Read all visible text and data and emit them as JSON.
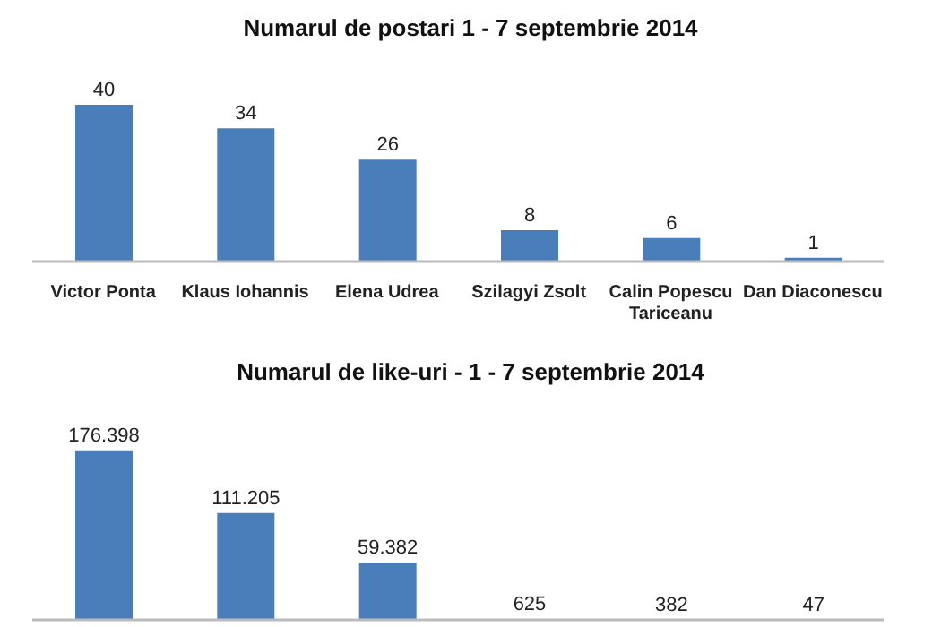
{
  "chart_data": [
    {
      "type": "bar",
      "title": "Numarul de postari 1 - 7 septembrie 2014",
      "categories": [
        "Victor Ponta",
        "Klaus Iohannis",
        "Elena Udrea",
        "Szilagyi Zsolt",
        "Calin Popescu Tariceanu",
        "Dan Diaconescu"
      ],
      "values": [
        40,
        34,
        26,
        8,
        6,
        1
      ],
      "color": "#4a7ebb",
      "data_labels": true
    },
    {
      "type": "bar",
      "title": "Numarul de like-uri - 1 - 7 septembrie 2014",
      "categories": [
        null,
        null,
        null,
        null,
        null,
        null
      ],
      "values": [
        176398,
        111205,
        59382,
        625,
        382,
        47
      ],
      "value_labels": [
        "176.398",
        "111.205",
        "59.382",
        "625",
        "382",
        "47"
      ],
      "color": "#4a7ebb"
    }
  ]
}
